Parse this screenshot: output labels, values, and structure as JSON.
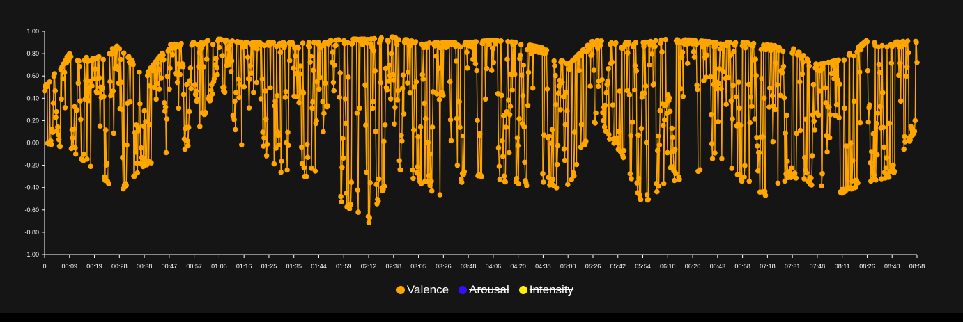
{
  "chart_data": {
    "type": "line",
    "title": "",
    "xlabel": "",
    "ylabel": "",
    "ylim": [
      -1.0,
      1.0
    ],
    "y_ticks": [
      "1.00",
      "0.80",
      "0.60",
      "0.40",
      "0.20",
      "0.00",
      "-0.20",
      "-0.40",
      "-0.60",
      "-0.80",
      "-1.00"
    ],
    "x_ticks": [
      "0",
      "00:09",
      "00:19",
      "00:28",
      "00:38",
      "00:47",
      "00:57",
      "01:06",
      "01:16",
      "01:25",
      "01:35",
      "01:44",
      "01:59",
      "02:12",
      "02:38",
      "03:05",
      "03:26",
      "03:48",
      "04:06",
      "04:20",
      "04:38",
      "05:00",
      "05:26",
      "05:42",
      "05:54",
      "06:10",
      "06:20",
      "06:43",
      "06:58",
      "07:18",
      "07:31",
      "07:48",
      "08:11",
      "08:26",
      "08:40",
      "08:58"
    ],
    "zero_line": "dashed",
    "legend_position": "bottom-center",
    "series": [
      {
        "name": "Valence",
        "color": "#FFA500",
        "visible": true,
        "envelope": [
          {
            "x": 0,
            "min": 0.0,
            "max": 0.5
          },
          {
            "x": 1,
            "min": -0.05,
            "max": 0.8
          },
          {
            "x": 2,
            "min": -0.25,
            "max": 0.75
          },
          {
            "x": 3,
            "min": -0.45,
            "max": 0.88
          },
          {
            "x": 4,
            "min": -0.2,
            "max": 0.6
          },
          {
            "x": 5,
            "min": -0.15,
            "max": 0.88
          },
          {
            "x": 6,
            "min": 0.0,
            "max": 0.9
          },
          {
            "x": 7,
            "min": 0.6,
            "max": 0.93
          },
          {
            "x": 8,
            "min": -0.15,
            "max": 0.9
          },
          {
            "x": 9,
            "min": -0.25,
            "max": 0.9
          },
          {
            "x": 10,
            "min": -0.3,
            "max": 0.9
          },
          {
            "x": 11,
            "min": -0.3,
            "max": 0.9
          },
          {
            "x": 12,
            "min": -0.55,
            "max": 0.93
          },
          {
            "x": 13,
            "min": -0.72,
            "max": 0.93
          },
          {
            "x": 14,
            "min": -0.2,
            "max": 0.95
          },
          {
            "x": 15,
            "min": -0.35,
            "max": 0.9
          },
          {
            "x": 16,
            "min": -0.5,
            "max": 0.9
          },
          {
            "x": 17,
            "min": -0.3,
            "max": 0.9
          },
          {
            "x": 18,
            "min": -0.3,
            "max": 0.92
          },
          {
            "x": 19,
            "min": -0.4,
            "max": 0.9
          },
          {
            "x": 20,
            "min": -0.35,
            "max": 0.85
          },
          {
            "x": 21,
            "min": -0.45,
            "max": 0.7
          },
          {
            "x": 22,
            "min": 0.2,
            "max": 0.92
          },
          {
            "x": 23,
            "min": -0.05,
            "max": 0.9
          },
          {
            "x": 24,
            "min": -0.55,
            "max": 0.9
          },
          {
            "x": 25,
            "min": -0.35,
            "max": 0.93
          },
          {
            "x": 26,
            "min": -0.3,
            "max": 0.92
          },
          {
            "x": 27,
            "min": -0.1,
            "max": 0.9
          },
          {
            "x": 28,
            "min": -0.35,
            "max": 0.9
          },
          {
            "x": 29,
            "min": -0.48,
            "max": 0.88
          },
          {
            "x": 30,
            "min": -0.3,
            "max": 0.85
          },
          {
            "x": 31,
            "min": -0.4,
            "max": 0.7
          },
          {
            "x": 32,
            "min": -0.45,
            "max": 0.75
          },
          {
            "x": 33,
            "min": -0.35,
            "max": 0.92
          },
          {
            "x": 34,
            "min": -0.3,
            "max": 0.9
          },
          {
            "x": 35,
            "min": 0.15,
            "max": 0.92
          }
        ]
      },
      {
        "name": "Arousal",
        "color": "#3A0CFF",
        "visible": false
      },
      {
        "name": "Intensity",
        "color": "#FFEE00",
        "visible": false
      }
    ]
  }
}
